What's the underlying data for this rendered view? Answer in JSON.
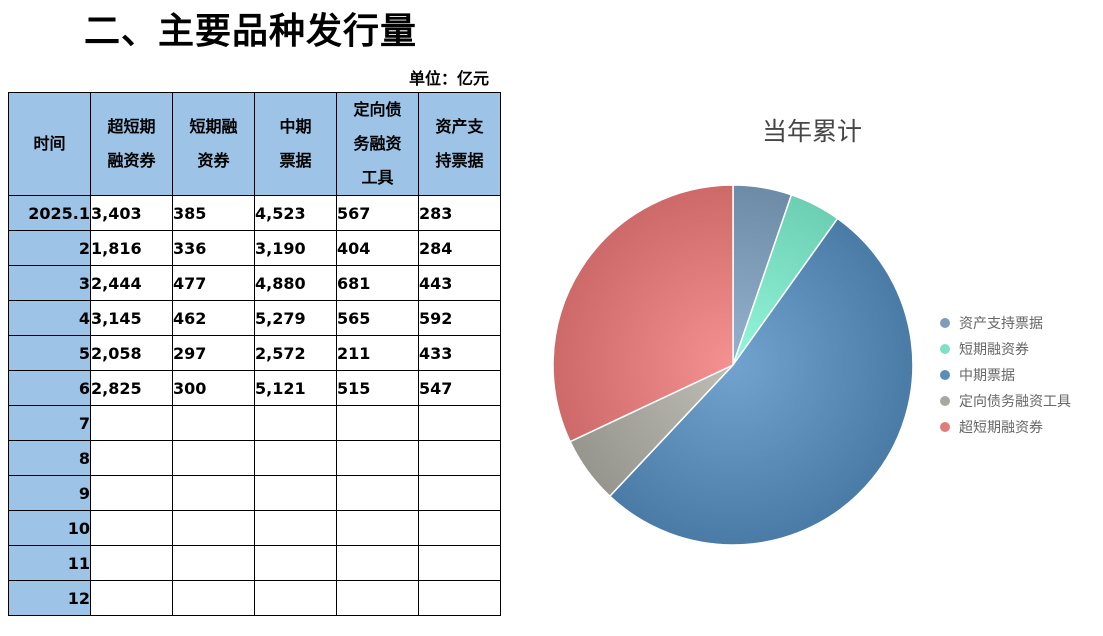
{
  "page": {
    "title": "二、主要品种发行量",
    "unit_note": "单位：亿元"
  },
  "table": {
    "headers": [
      "时间",
      "超短期\n融资券",
      "短期融\n资券",
      "中期\n票据",
      "定向债\n务融资\n工具",
      "资产支\n持票据"
    ],
    "rows": [
      [
        "2025.1",
        "3,403",
        "385",
        "4,523",
        "567",
        "283"
      ],
      [
        "2",
        "1,816",
        "336",
        "3,190",
        "404",
        "284"
      ],
      [
        "3",
        "2,444",
        "477",
        "4,880",
        "681",
        "443"
      ],
      [
        "4",
        "3,145",
        "462",
        "5,279",
        "565",
        "592"
      ],
      [
        "5",
        "2,058",
        "297",
        "2,572",
        "211",
        "433"
      ],
      [
        "6",
        "2,825",
        "300",
        "5,121",
        "515",
        "547"
      ],
      [
        "7",
        "",
        "",
        "",
        "",
        ""
      ],
      [
        "8",
        "",
        "",
        "",
        "",
        ""
      ],
      [
        "9",
        "",
        "",
        "",
        "",
        ""
      ],
      [
        "10",
        "",
        "",
        "",
        "",
        ""
      ],
      [
        "11",
        "",
        "",
        "",
        "",
        ""
      ],
      [
        "12",
        "",
        "",
        "",
        "",
        ""
      ]
    ]
  },
  "chart_data": {
    "type": "pie",
    "title": "当年累计",
    "legend_position": "right",
    "start_angle_deg": 0,
    "direction": "clockwise",
    "slices": [
      {
        "name": "资产支持票据",
        "value": 2582,
        "color": "#7f9db8"
      },
      {
        "name": "短期融资券",
        "value": 2257,
        "color": "#7ee0c4"
      },
      {
        "name": "中期票据",
        "value": 25565,
        "color": "#5b8db8"
      },
      {
        "name": "定向债务融资工具",
        "value": 2943,
        "color": "#a8a8a0"
      },
      {
        "name": "超短期融资券",
        "value": 15691,
        "color": "#e07b7b"
      }
    ]
  }
}
